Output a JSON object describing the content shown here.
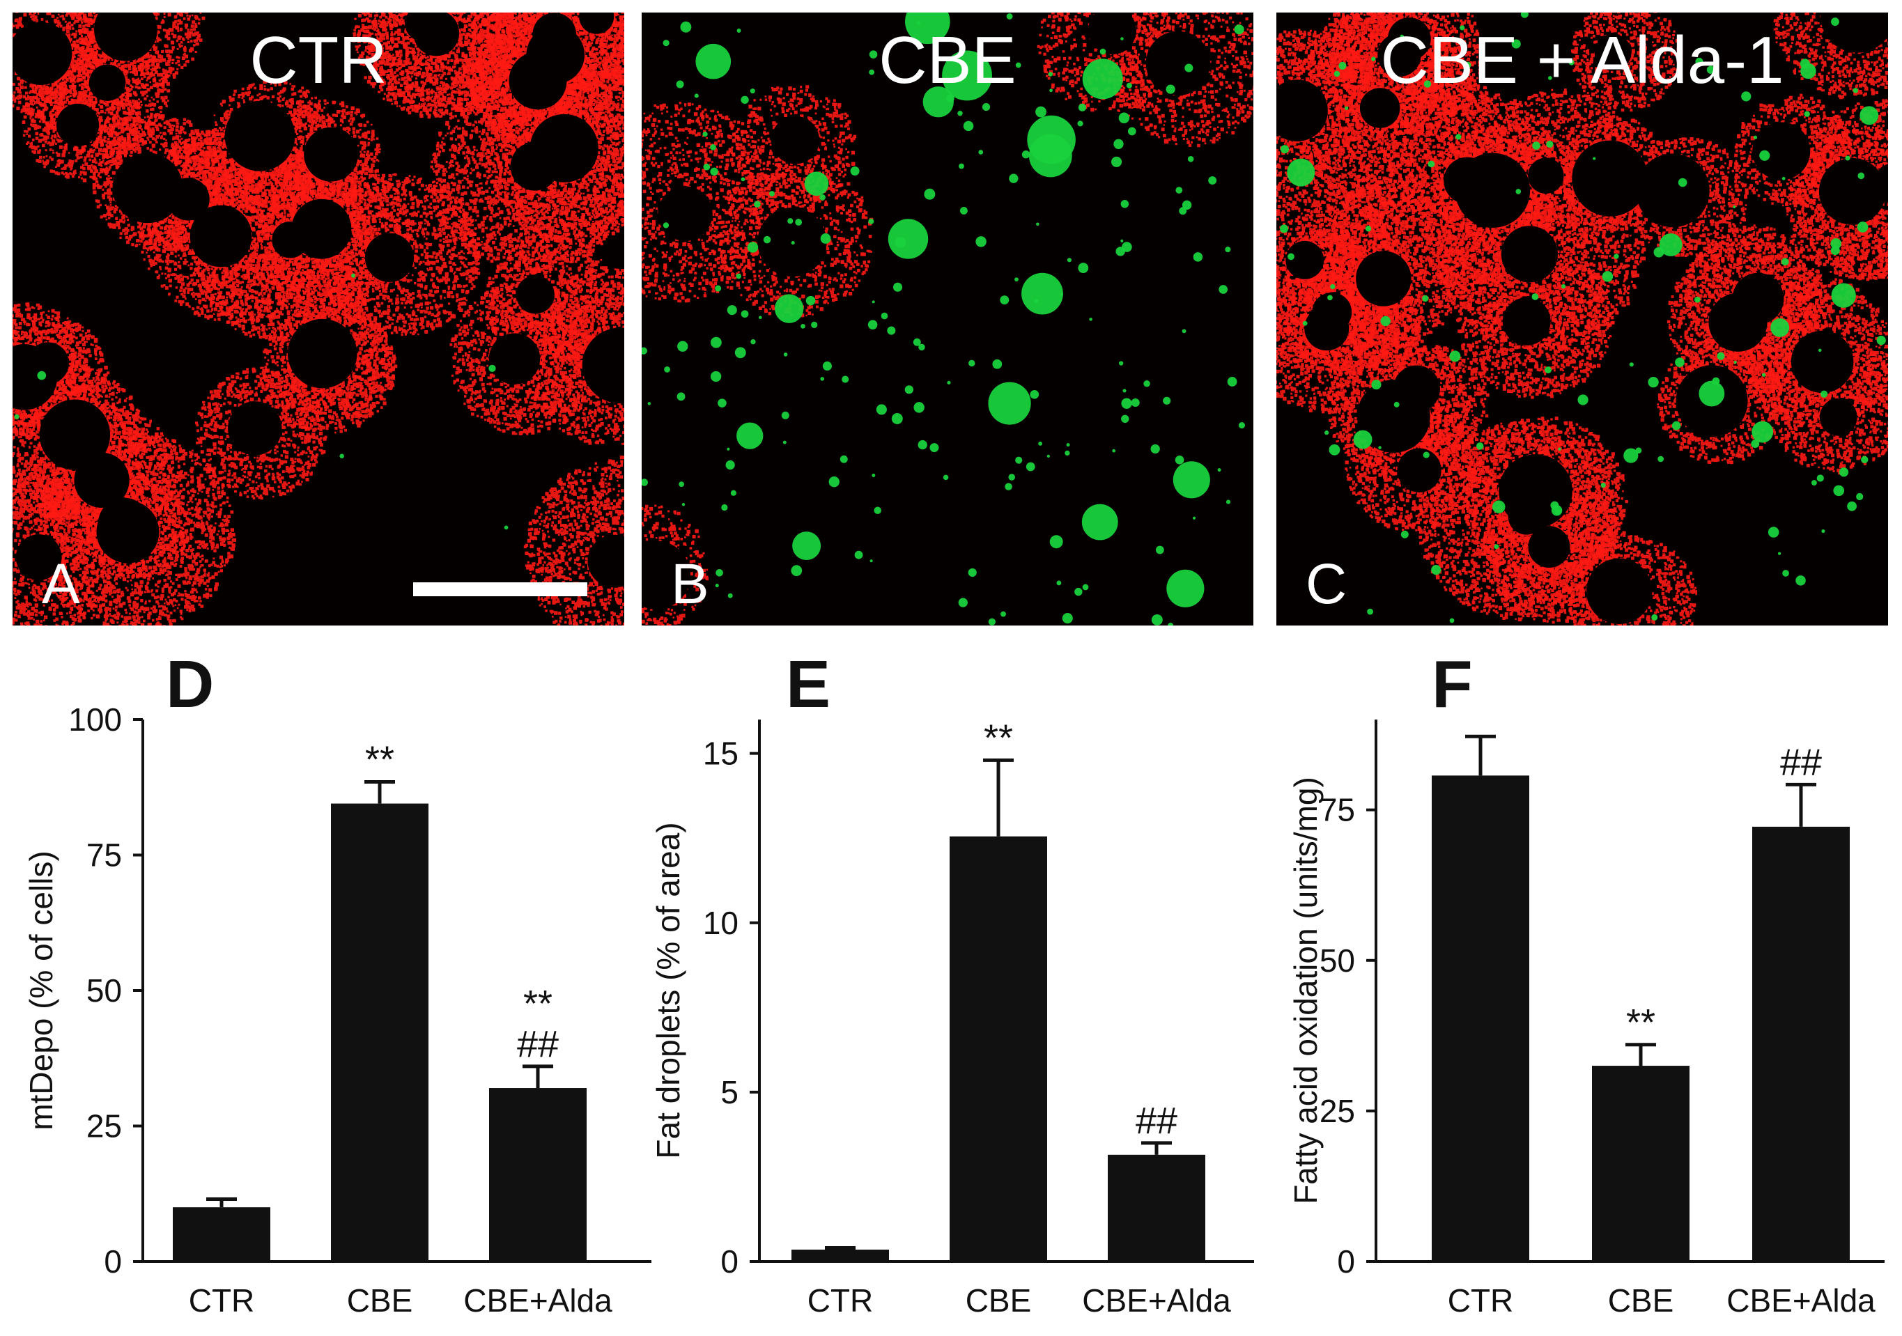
{
  "panels": {
    "A": {
      "letter": "A",
      "title": "CTR"
    },
    "B": {
      "letter": "B",
      "title": "CBE"
    },
    "C": {
      "letter": "C",
      "title": "CBE + Alda-1"
    }
  },
  "colors": {
    "bar": "#111111",
    "mito": "#ff1a14",
    "lipid": "#19d23c",
    "background": "#050000"
  },
  "chart_data": [
    {
      "panel": "D",
      "type": "bar",
      "categories": [
        "CTR",
        "CBE",
        "CBE+Alda"
      ],
      "values": [
        10,
        84.5,
        32
      ],
      "errors": [
        1.5,
        4,
        4
      ],
      "annotations": [
        [
          "",
          ""
        ],
        [
          "**",
          ""
        ],
        [
          "**",
          "##"
        ]
      ],
      "ylabel": "mtDepo (% of cells)",
      "ylim": [
        0,
        100
      ],
      "yticks": [
        0,
        25,
        50,
        75,
        100
      ]
    },
    {
      "panel": "E",
      "type": "bar",
      "categories": [
        "CTR",
        "CBE",
        "CBE+Alda"
      ],
      "values": [
        0.35,
        12.55,
        3.15
      ],
      "errors": [
        0.05,
        2.25,
        0.35
      ],
      "annotations": [
        [
          "",
          ""
        ],
        [
          "**",
          ""
        ],
        [
          "##",
          ""
        ]
      ],
      "ylabel": "Fat droplets (% of area)",
      "ylim": [
        0,
        16
      ],
      "yticks": [
        0,
        5,
        10,
        15
      ]
    },
    {
      "panel": "F",
      "type": "bar",
      "categories": [
        "CTR",
        "CBE",
        "CBE+Alda"
      ],
      "values": [
        80.7,
        32.5,
        72.2
      ],
      "errors": [
        6.5,
        3.5,
        7
      ],
      "annotations": [
        [
          "",
          ""
        ],
        [
          "**",
          ""
        ],
        [
          "##",
          ""
        ]
      ],
      "ylabel": "Fatty acid oxidation (units/mg)",
      "ylim": [
        0,
        90
      ],
      "yticks": [
        0,
        25,
        50,
        75
      ]
    }
  ]
}
